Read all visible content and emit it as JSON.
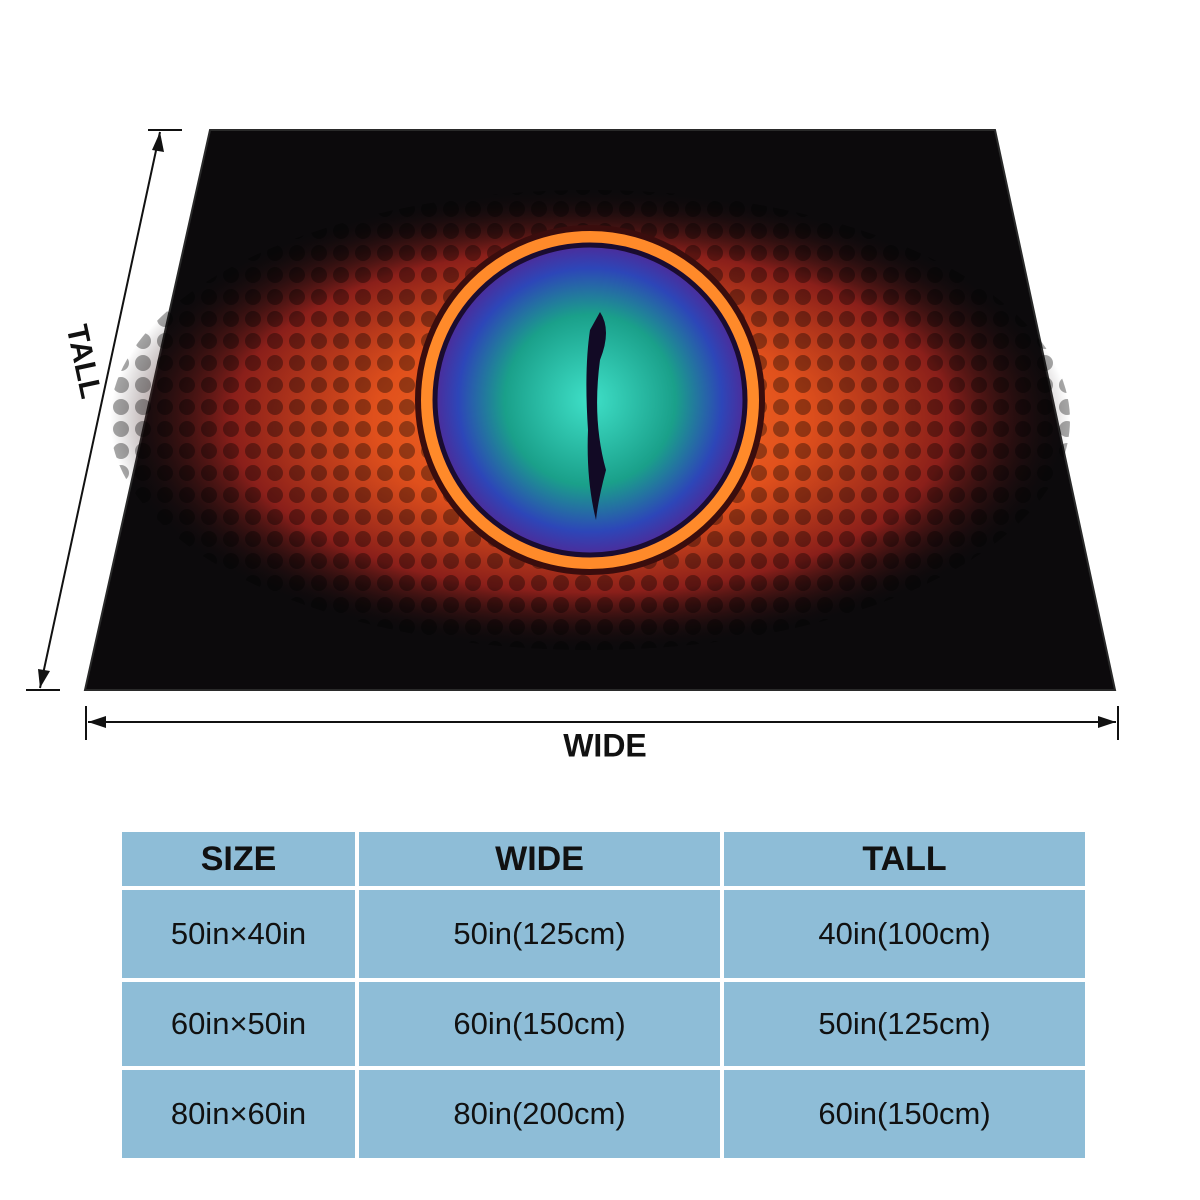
{
  "dimensions": {
    "tall": "TALL",
    "wide": "WIDE"
  },
  "table": {
    "header": [
      "SIZE",
      "WIDE",
      "TALL"
    ],
    "rows": [
      [
        "50in×40in",
        "50in(125cm)",
        "40in(100cm)"
      ],
      [
        "60in×50in",
        "60in(150cm)",
        "50in(125cm)"
      ],
      [
        "80in×60in",
        "80in(200cm)",
        "60in(150cm)"
      ]
    ]
  }
}
